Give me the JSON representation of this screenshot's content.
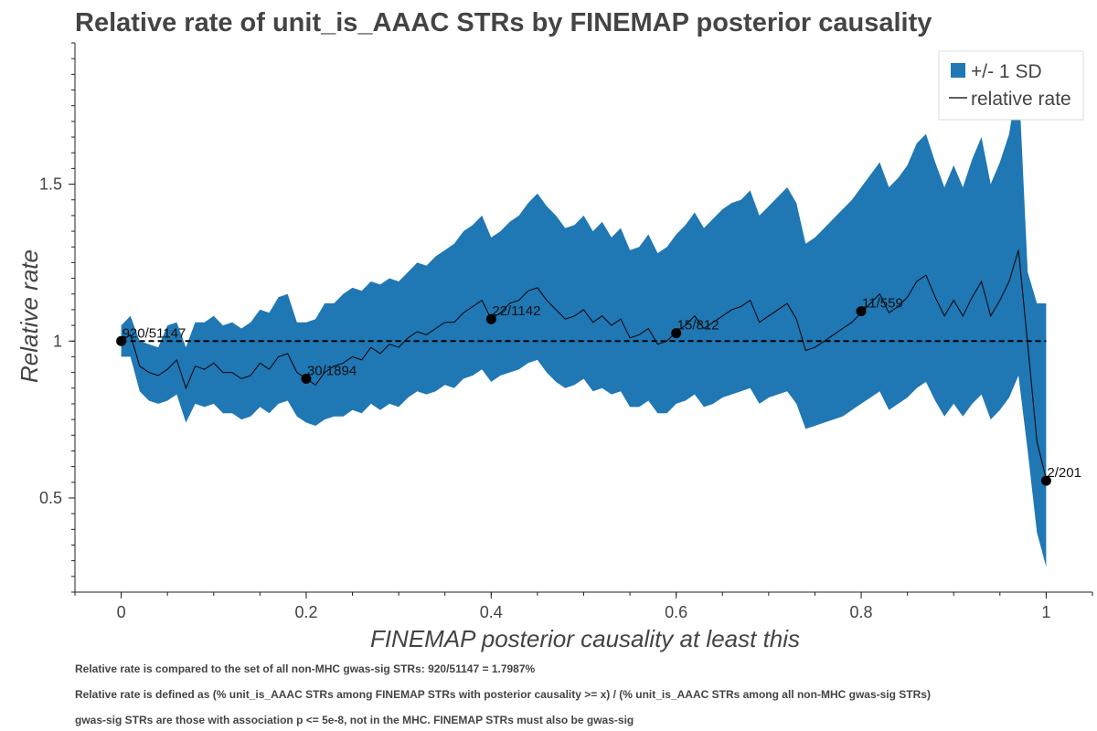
{
  "chart_data": {
    "type": "line",
    "title": "Relative rate of unit_is_AAAC STRs by FINEMAP posterior causality",
    "xlabel": "FINEMAP posterior causality at least this",
    "ylabel": "Relative rate",
    "xlim": [
      -0.05,
      1.05
    ],
    "ylim": [
      0.2,
      1.95
    ],
    "x_ticks": [
      0,
      0.2,
      0.4,
      0.6,
      0.8,
      1
    ],
    "x_tick_labels": [
      "0",
      "0.2",
      "0.4",
      "0.6",
      "0.8",
      "1"
    ],
    "y_ticks": [
      0.5,
      1,
      1.5
    ],
    "y_tick_labels": [
      "0.5",
      "1",
      "1.5"
    ],
    "reference_line": 1,
    "legend": {
      "position": "top-right",
      "entries": [
        "+/- 1 SD",
        "relative rate"
      ]
    },
    "colors": {
      "band": "#1f77b4",
      "line": "#000000",
      "reference": "#000000"
    },
    "series": [
      {
        "name": "relative rate",
        "x": [
          0,
          0.01,
          0.02,
          0.03,
          0.04,
          0.05,
          0.06,
          0.07,
          0.08,
          0.09,
          0.1,
          0.11,
          0.12,
          0.13,
          0.14,
          0.15,
          0.16,
          0.17,
          0.18,
          0.19,
          0.2,
          0.21,
          0.22,
          0.23,
          0.24,
          0.25,
          0.26,
          0.27,
          0.28,
          0.29,
          0.3,
          0.31,
          0.32,
          0.33,
          0.34,
          0.35,
          0.36,
          0.37,
          0.38,
          0.39,
          0.4,
          0.41,
          0.42,
          0.43,
          0.44,
          0.45,
          0.46,
          0.47,
          0.48,
          0.49,
          0.5,
          0.51,
          0.52,
          0.53,
          0.54,
          0.55,
          0.56,
          0.57,
          0.58,
          0.59,
          0.6,
          0.61,
          0.62,
          0.63,
          0.64,
          0.65,
          0.66,
          0.67,
          0.68,
          0.69,
          0.7,
          0.71,
          0.72,
          0.73,
          0.74,
          0.75,
          0.76,
          0.77,
          0.78,
          0.79,
          0.8,
          0.81,
          0.82,
          0.83,
          0.84,
          0.85,
          0.86,
          0.87,
          0.88,
          0.89,
          0.9,
          0.91,
          0.92,
          0.93,
          0.94,
          0.95,
          0.96,
          0.97,
          0.98,
          0.99,
          1
        ],
        "y": [
          1.0,
          1.02,
          0.92,
          0.9,
          0.89,
          0.91,
          0.94,
          0.85,
          0.92,
          0.91,
          0.93,
          0.9,
          0.9,
          0.88,
          0.89,
          0.93,
          0.91,
          0.95,
          0.96,
          0.9,
          0.88,
          0.86,
          0.9,
          0.92,
          0.93,
          0.95,
          0.94,
          0.98,
          0.96,
          0.99,
          0.98,
          1.01,
          1.03,
          1.02,
          1.04,
          1.06,
          1.06,
          1.09,
          1.11,
          1.13,
          1.07,
          1.09,
          1.12,
          1.13,
          1.16,
          1.17,
          1.13,
          1.1,
          1.07,
          1.08,
          1.1,
          1.06,
          1.08,
          1.05,
          1.07,
          1.01,
          1.02,
          1.04,
          0.99,
          1.0,
          1.03,
          1.05,
          1.08,
          1.04,
          1.06,
          1.08,
          1.1,
          1.11,
          1.13,
          1.06,
          1.08,
          1.1,
          1.12,
          1.07,
          0.97,
          0.98,
          1.0,
          1.02,
          1.04,
          1.06,
          1.09,
          1.12,
          1.15,
          1.09,
          1.11,
          1.14,
          1.19,
          1.21,
          1.14,
          1.08,
          1.13,
          1.08,
          1.14,
          1.19,
          1.08,
          1.13,
          1.19,
          1.29,
          0.99,
          0.68,
          0.56
        ]
      },
      {
        "name": "+/- 1 SD",
        "x": [
          0,
          0.01,
          0.02,
          0.03,
          0.04,
          0.05,
          0.06,
          0.07,
          0.08,
          0.09,
          0.1,
          0.11,
          0.12,
          0.13,
          0.14,
          0.15,
          0.16,
          0.17,
          0.18,
          0.19,
          0.2,
          0.21,
          0.22,
          0.23,
          0.24,
          0.25,
          0.26,
          0.27,
          0.28,
          0.29,
          0.3,
          0.31,
          0.32,
          0.33,
          0.34,
          0.35,
          0.36,
          0.37,
          0.38,
          0.39,
          0.4,
          0.41,
          0.42,
          0.43,
          0.44,
          0.45,
          0.46,
          0.47,
          0.48,
          0.49,
          0.5,
          0.51,
          0.52,
          0.53,
          0.54,
          0.55,
          0.56,
          0.57,
          0.58,
          0.59,
          0.6,
          0.61,
          0.62,
          0.63,
          0.64,
          0.65,
          0.66,
          0.67,
          0.68,
          0.69,
          0.7,
          0.71,
          0.72,
          0.73,
          0.74,
          0.75,
          0.76,
          0.77,
          0.78,
          0.79,
          0.8,
          0.81,
          0.82,
          0.83,
          0.84,
          0.85,
          0.86,
          0.87,
          0.88,
          0.89,
          0.9,
          0.91,
          0.92,
          0.93,
          0.94,
          0.95,
          0.96,
          0.97,
          0.98,
          0.99,
          1
        ],
        "upper": [
          1.05,
          1.08,
          1.0,
          0.99,
          0.98,
          1.05,
          1.06,
          0.98,
          1.06,
          1.06,
          1.08,
          1.05,
          1.06,
          1.04,
          1.06,
          1.1,
          1.09,
          1.14,
          1.15,
          1.06,
          1.06,
          1.07,
          1.12,
          1.12,
          1.15,
          1.17,
          1.16,
          1.19,
          1.18,
          1.2,
          1.19,
          1.22,
          1.25,
          1.24,
          1.27,
          1.29,
          1.31,
          1.35,
          1.37,
          1.4,
          1.33,
          1.35,
          1.38,
          1.4,
          1.44,
          1.47,
          1.43,
          1.4,
          1.36,
          1.37,
          1.4,
          1.35,
          1.38,
          1.33,
          1.36,
          1.29,
          1.3,
          1.34,
          1.28,
          1.3,
          1.34,
          1.37,
          1.41,
          1.36,
          1.39,
          1.42,
          1.44,
          1.45,
          1.48,
          1.4,
          1.43,
          1.46,
          1.49,
          1.44,
          1.31,
          1.33,
          1.36,
          1.39,
          1.42,
          1.45,
          1.49,
          1.53,
          1.57,
          1.49,
          1.52,
          1.56,
          1.63,
          1.66,
          1.57,
          1.49,
          1.56,
          1.49,
          1.58,
          1.65,
          1.5,
          1.57,
          1.66,
          1.85,
          1.22,
          1.12,
          1.12
        ],
        "lower": [
          0.95,
          0.95,
          0.84,
          0.81,
          0.8,
          0.81,
          0.83,
          0.74,
          0.8,
          0.79,
          0.8,
          0.77,
          0.77,
          0.75,
          0.76,
          0.79,
          0.77,
          0.8,
          0.81,
          0.76,
          0.74,
          0.73,
          0.75,
          0.76,
          0.76,
          0.78,
          0.77,
          0.8,
          0.78,
          0.8,
          0.79,
          0.82,
          0.84,
          0.83,
          0.84,
          0.86,
          0.85,
          0.88,
          0.89,
          0.91,
          0.87,
          0.89,
          0.9,
          0.91,
          0.93,
          0.94,
          0.9,
          0.87,
          0.85,
          0.86,
          0.88,
          0.84,
          0.85,
          0.83,
          0.84,
          0.79,
          0.79,
          0.81,
          0.77,
          0.77,
          0.8,
          0.81,
          0.83,
          0.79,
          0.8,
          0.82,
          0.83,
          0.84,
          0.85,
          0.8,
          0.82,
          0.83,
          0.84,
          0.8,
          0.72,
          0.73,
          0.74,
          0.75,
          0.76,
          0.78,
          0.8,
          0.82,
          0.84,
          0.78,
          0.8,
          0.82,
          0.85,
          0.87,
          0.81,
          0.76,
          0.8,
          0.76,
          0.8,
          0.83,
          0.75,
          0.78,
          0.82,
          0.89,
          0.65,
          0.39,
          0.28
        ]
      }
    ],
    "annotated_points": [
      {
        "x": 0,
        "y": 1.0,
        "label": "920/51147"
      },
      {
        "x": 0.2,
        "y": 0.88,
        "label": "30/1894"
      },
      {
        "x": 0.4,
        "y": 1.07,
        "label": "22/1142"
      },
      {
        "x": 0.6,
        "y": 1.025,
        "label": "15/812"
      },
      {
        "x": 0.8,
        "y": 1.095,
        "label": "11/559"
      },
      {
        "x": 1,
        "y": 0.555,
        "label": "2/201"
      }
    ]
  },
  "notes": [
    "Relative rate is compared to the set of all non-MHC gwas-sig STRs: 920/51147 = 1.7987%",
    "Relative rate is defined as (% unit_is_AAAC STRs among FINEMAP STRs with posterior causality >= x) / (% unit_is_AAAC STRs among all non-MHC gwas-sig STRs)",
    "gwas-sig STRs are those with association p <= 5e-8, not in the MHC. FINEMAP STRs must also be gwas-sig"
  ]
}
